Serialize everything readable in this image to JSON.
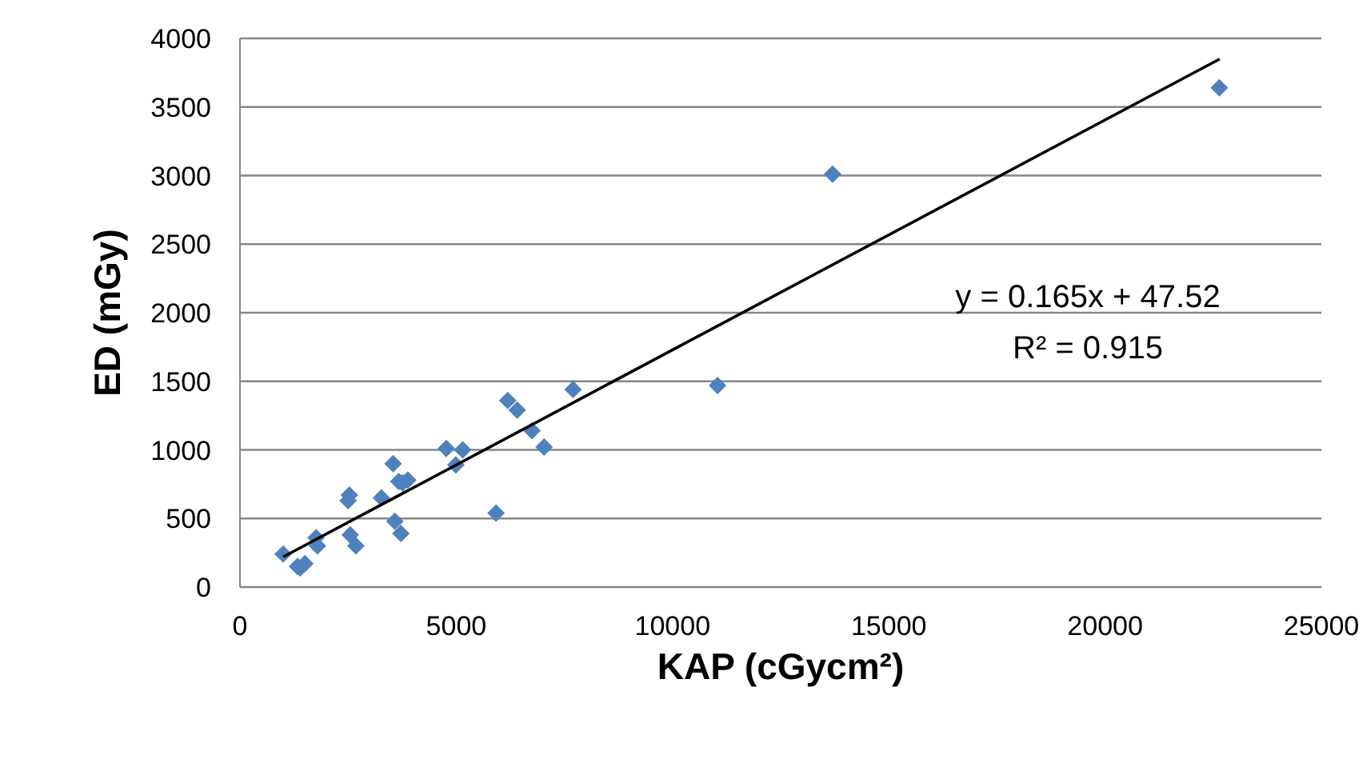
{
  "chart_data": {
    "type": "scatter",
    "xlabel": "KAP (cGycm²)",
    "ylabel": "ED (mGy)",
    "series": [
      {
        "type": "scatter",
        "color": "#4f81bd",
        "marker": "diamond",
        "x": [
          1000,
          1330,
          1390,
          1500,
          1760,
          1790,
          2500,
          2530,
          2550,
          2680,
          3270,
          3540,
          3580,
          3670,
          3720,
          3760,
          3880,
          4770,
          4990,
          5150,
          5920,
          6190,
          6410,
          6750,
          7030,
          7700,
          11040,
          13700,
          22640
        ],
        "values": [
          240,
          150,
          140,
          170,
          360,
          300,
          630,
          670,
          380,
          300,
          650,
          900,
          480,
          770,
          390,
          760,
          780,
          1010,
          890,
          1000,
          540,
          1360,
          1290,
          1140,
          1020,
          1440,
          1470,
          3010,
          3640
        ]
      },
      {
        "type": "line",
        "color": "#000000",
        "marker": "none",
        "x": [
          1000,
          22650
        ],
        "values": [
          220,
          3850
        ]
      }
    ],
    "annotations": [
      "y = 0.165x + 47.52",
      "R² = 0.915"
    ],
    "xlim": [
      0,
      25000
    ],
    "xticks": [
      0,
      5000,
      10000,
      15000,
      20000,
      25000
    ],
    "ylim": [
      0,
      4000
    ],
    "yticks": [
      0,
      500,
      1000,
      1500,
      2000,
      2500,
      3000,
      3500,
      4000
    ],
    "grid": "y",
    "legend": false
  }
}
